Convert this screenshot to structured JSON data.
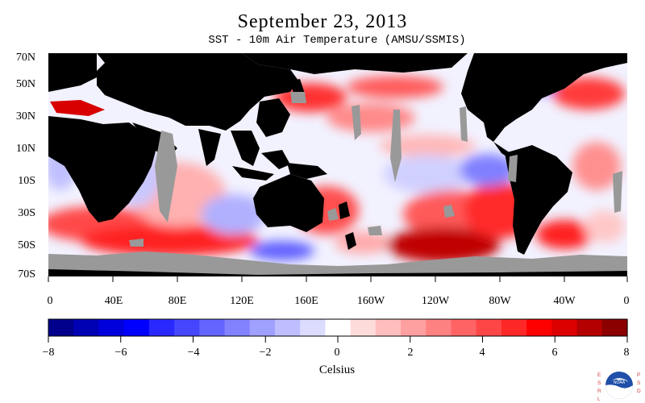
{
  "title": "September 23, 2013",
  "subtitle": "SST - 10m Air Temperature (AMSU/SSMIS)",
  "latitude_labels": [
    "70N",
    "50N",
    "30N",
    "10N",
    "10S",
    "30S",
    "50S",
    "70S"
  ],
  "longitude_labels": [
    "0",
    "40E",
    "80E",
    "120E",
    "160E",
    "160W",
    "120W",
    "80W",
    "40W",
    "0"
  ],
  "colorbar": {
    "unit_label": "Celsius",
    "tick_labels": [
      "−8",
      "−6",
      "−4",
      "−2",
      "0",
      "2",
      "4",
      "6",
      "8"
    ],
    "range": [
      -8,
      8
    ],
    "colors": [
      "#00008c",
      "#0000b4",
      "#0000dc",
      "#0000ff",
      "#2828ff",
      "#4646ff",
      "#6464ff",
      "#8282ff",
      "#a0a0ff",
      "#bebeff",
      "#dcdcff",
      "#ffffff",
      "#ffdcdc",
      "#ffbebe",
      "#ffa0a0",
      "#ff8282",
      "#ff6464",
      "#ff4646",
      "#ff2828",
      "#ff0000",
      "#dc0000",
      "#b40000",
      "#8c0000"
    ]
  },
  "map_colors": {
    "land": "#000000",
    "ice_or_missing": "#999999",
    "neutral_ocean": "#ffffff"
  },
  "logo_text": {
    "left": "ESRL",
    "right": "PSD",
    "center": "NOAA"
  }
}
